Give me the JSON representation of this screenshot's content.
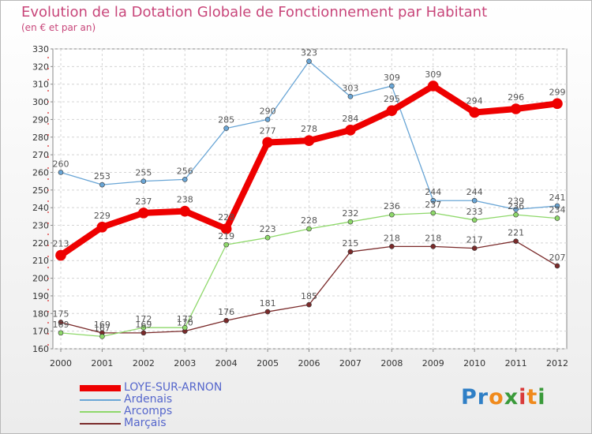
{
  "header": {
    "title": "Evolution de la Dotation Globale de Fonctionnement par Habitant",
    "subtitle": "(en € et par an)"
  },
  "logo": {
    "text": "Proxiti",
    "letters": [
      {
        "ch": "P",
        "color": "#2f7fc6"
      },
      {
        "ch": "r",
        "color": "#2f7fc6"
      },
      {
        "ch": "o",
        "color": "#f08a1c"
      },
      {
        "ch": "x",
        "color": "#3a9a3a"
      },
      {
        "ch": "i",
        "color": "#d93a3a"
      },
      {
        "ch": "t",
        "color": "#f08a1c"
      },
      {
        "ch": "i",
        "color": "#3a9a3a"
      }
    ]
  },
  "chart_data": {
    "type": "line",
    "x": [
      2000,
      2001,
      2002,
      2003,
      2004,
      2005,
      2006,
      2007,
      2008,
      2009,
      2010,
      2011,
      2012
    ],
    "ylim": [
      160,
      330
    ],
    "yticks": [
      160,
      170,
      180,
      190,
      200,
      210,
      220,
      230,
      240,
      250,
      260,
      270,
      280,
      290,
      300,
      310,
      320,
      330
    ],
    "grid": true,
    "legend_position": "bottom-left",
    "series": [
      {
        "name": "Marçais",
        "color": "#7a2a2a",
        "width": 1.3,
        "marker": 3,
        "values": [
          175,
          169,
          169,
          170,
          176,
          181,
          185,
          215,
          218,
          218,
          217,
          221,
          207
        ]
      },
      {
        "name": "Arcomps",
        "color": "#8ed86a",
        "width": 1.3,
        "marker": 3,
        "values": [
          169,
          167,
          172,
          172,
          219,
          223,
          228,
          232,
          236,
          237,
          233,
          236,
          234
        ]
      },
      {
        "name": "Ardenais",
        "color": "#6aa6d6",
        "width": 1.3,
        "marker": 3,
        "values": [
          260,
          253,
          255,
          256,
          285,
          290,
          323,
          303,
          309,
          244,
          244,
          239,
          241
        ]
      },
      {
        "name": "LOYE-SUR-ARNON",
        "color": "#ee0000",
        "width": 8,
        "marker": 6.5,
        "values": [
          213,
          229,
          237,
          238,
          228,
          277,
          278,
          284,
          295,
          309,
          294,
          296,
          299
        ]
      }
    ]
  }
}
